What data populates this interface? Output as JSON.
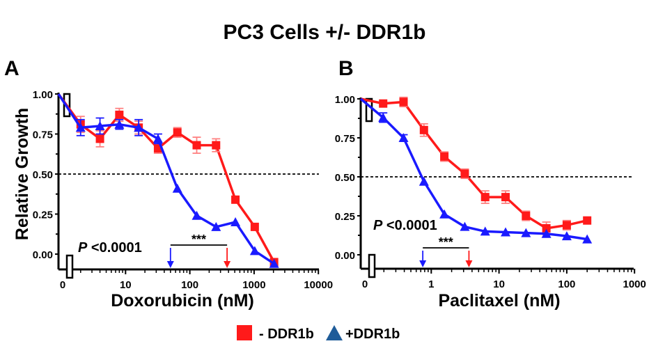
{
  "title": "PC3 Cells +/- DDR1b",
  "legend": [
    {
      "label": "- DDR1b",
      "marker": "square",
      "color": "#ff1a1a"
    },
    {
      "label": "+DDR1b",
      "marker": "triangle",
      "color": "#1f5c99"
    }
  ],
  "colors": {
    "red": "#ff1a1a",
    "blue": "#1a1aff",
    "red_error": "#ff8080"
  },
  "chart_data": [
    {
      "type": "line",
      "panel_label": "A",
      "xlabel": "Doxorubicin (nM)",
      "ylabel": "Relative Growth",
      "x_scale": "log",
      "xlim": [
        1,
        10000
      ],
      "ylim": [
        -0.1,
        1.0
      ],
      "x_ticks": [
        "0",
        "10",
        "100",
        "1000",
        "10000"
      ],
      "y_ticks": [
        "0.00",
        "0.25",
        "0.50",
        "0.75",
        "1.00"
      ],
      "reference_line_y": 0.5,
      "annotation": {
        "p_prefix": "P",
        "p_text": "<0.0001",
        "significance": "***",
        "ic50_blue": 50,
        "ic50_red": 380
      },
      "series": [
        {
          "name": "- DDR1b",
          "color": "red",
          "marker": "square",
          "x": [
            0,
            2,
            4,
            8,
            16,
            32,
            64,
            128,
            256,
            512,
            1024,
            2048
          ],
          "y": [
            1.0,
            0.81,
            0.72,
            0.87,
            0.79,
            0.66,
            0.76,
            0.68,
            0.68,
            0.34,
            0.17,
            -0.05
          ],
          "err": [
            0,
            0.05,
            0.05,
            0.04,
            0.04,
            0.03,
            0.03,
            0.05,
            0.04,
            0,
            0,
            0
          ]
        },
        {
          "name": "+DDR1b",
          "color": "blue",
          "marker": "triangle",
          "x": [
            0,
            2,
            4,
            8,
            16,
            32,
            64,
            128,
            256,
            512,
            1024,
            2048
          ],
          "y": [
            1.0,
            0.79,
            0.8,
            0.81,
            0.79,
            0.72,
            0.41,
            0.24,
            0.17,
            0.2,
            0.02,
            -0.06
          ],
          "err": [
            0,
            0.05,
            0.05,
            0.03,
            0.05,
            0.03,
            0,
            0,
            0,
            0,
            0,
            0
          ]
        }
      ]
    },
    {
      "type": "line",
      "panel_label": "B",
      "xlabel": "Paclitaxel (nM)",
      "ylabel": "",
      "x_scale": "log",
      "xlim": [
        0.1,
        1000
      ],
      "ylim": [
        -0.1,
        1.0
      ],
      "x_ticks": [
        "0",
        "1",
        "10",
        "100",
        "1000"
      ],
      "y_ticks": [
        "0.00",
        "0.25",
        "0.50",
        "0.75",
        "1.00"
      ],
      "reference_line_y": 0.5,
      "annotation": {
        "p_prefix": "P",
        "p_text": "<0.0001",
        "significance": "***",
        "ic50_blue": 0.75,
        "ic50_red": 3.6
      },
      "series": [
        {
          "name": "- DDR1b",
          "color": "red",
          "marker": "square",
          "x": [
            0,
            0.195,
            0.39,
            0.78,
            1.56,
            3.125,
            6.25,
            12.5,
            25,
            50,
            100,
            200
          ],
          "y": [
            1.0,
            0.97,
            0.98,
            0.8,
            0.63,
            0.52,
            0.37,
            0.37,
            0.25,
            0.17,
            0.19,
            0.22
          ],
          "err": [
            0,
            0.01,
            0.03,
            0.04,
            0.03,
            0.03,
            0.04,
            0.04,
            0.03,
            0.04,
            0.03,
            0
          ]
        },
        {
          "name": "+DDR1b",
          "color": "blue",
          "marker": "triangle",
          "x": [
            0,
            0.195,
            0.39,
            0.78,
            1.56,
            3.125,
            6.25,
            12.5,
            25,
            50,
            100,
            200
          ],
          "y": [
            1.0,
            0.88,
            0.75,
            0.47,
            0.26,
            0.18,
            0.15,
            0.145,
            0.14,
            0.135,
            0.12,
            0.1
          ],
          "err": [
            0,
            0.03,
            0.02,
            0,
            0,
            0,
            0,
            0,
            0,
            0,
            0,
            0
          ]
        }
      ]
    }
  ]
}
